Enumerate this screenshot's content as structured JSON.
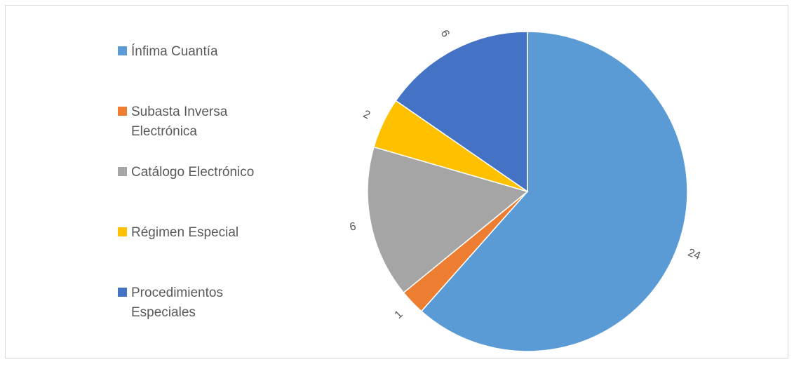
{
  "chart_data": {
    "type": "pie",
    "title": "",
    "categories": [
      "Ínfima Cuantía",
      "Subasta Inversa Electrónica",
      "Catálogo Electrónico",
      "Régimen Especial",
      "Procedimientos Especiales"
    ],
    "values": [
      24,
      1,
      6,
      2,
      6
    ],
    "data_labels": [
      "24",
      "1",
      "6",
      "2",
      "6"
    ],
    "colors": [
      "#5b9bd5",
      "#ed7d31",
      "#a5a5a5",
      "#ffc000",
      "#4472c4"
    ],
    "legend_position": "left",
    "start_angle": "top",
    "direction": "clockwise"
  }
}
